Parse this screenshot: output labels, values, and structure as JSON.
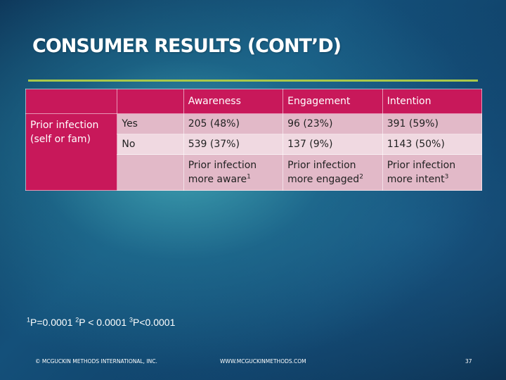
{
  "slide": {
    "title": "CONSUMER RESULTS (CONT’D)"
  },
  "table": {
    "headers": [
      "Awareness",
      "Engagement",
      "Intention"
    ],
    "row_label": "Prior infection (self or fam)",
    "rows": [
      {
        "label": "Yes",
        "values": [
          "205 (48%)",
          "96 (23%)",
          "391 (59%)"
        ]
      },
      {
        "label": "No",
        "values": [
          "539 (37%)",
          "137 (9%)",
          "1143 (50%)"
        ]
      }
    ],
    "notes": [
      {
        "text": "Prior infection more aware",
        "sup": "1"
      },
      {
        "text": "Prior infection more engaged",
        "sup": "2"
      },
      {
        "text": "Prior infection more intent",
        "sup": "3"
      }
    ]
  },
  "footnote": {
    "items": [
      {
        "sup": "1",
        "text": "P=0.0001 "
      },
      {
        "sup": "2",
        "text": "P < 0.0001 "
      },
      {
        "sup": "3",
        "text": "P<0.0001"
      }
    ]
  },
  "footer": {
    "copyright": "© MCGUCKIN METHODS INTERNATIONAL, INC.",
    "website": "WWW.MCGUCKINMETHODS.COM",
    "page_number": "37"
  },
  "colors": {
    "accent_magenta": "#c8185a",
    "row_pink_dark": "#e2b9c8",
    "row_pink_light": "#f0d9e1",
    "title_rule": "#a9c94a"
  }
}
